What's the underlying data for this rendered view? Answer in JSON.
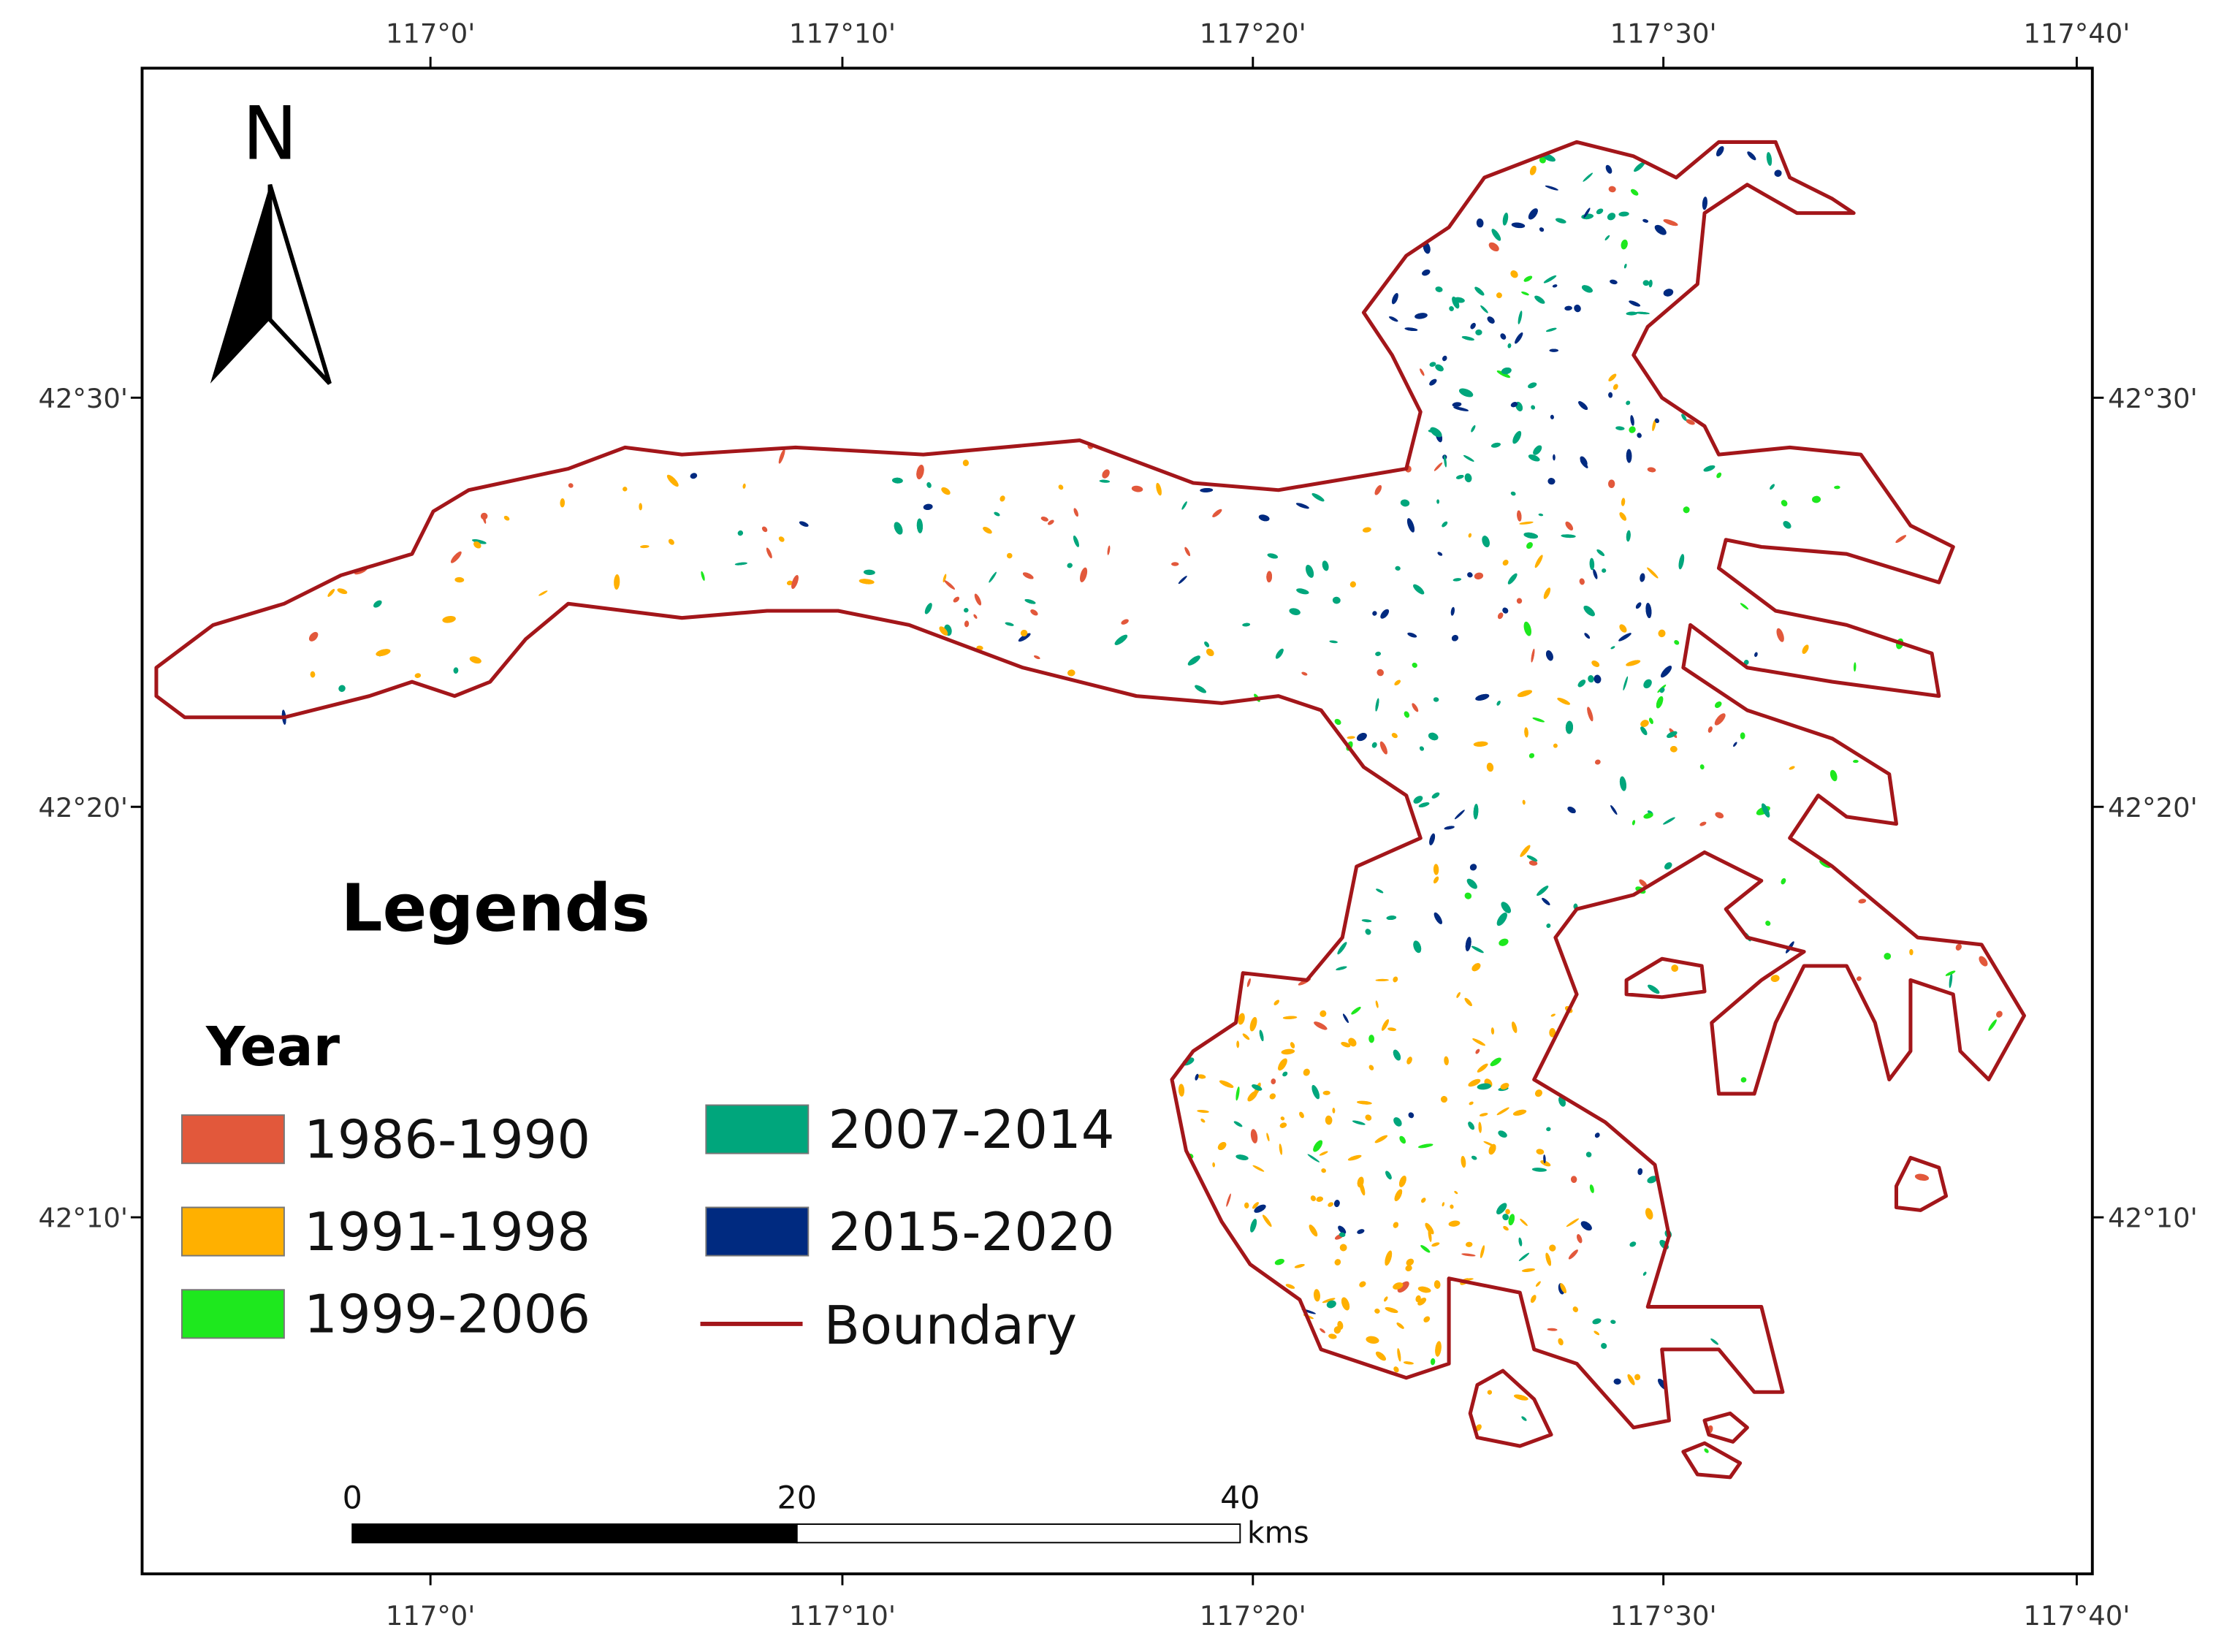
{
  "map": {
    "lon_labels": [
      "117°0'",
      "117°10'",
      "117°20'",
      "117°30'",
      "117°40'"
    ],
    "lat_labels": [
      "42°30'",
      "42°20'",
      "42°10'"
    ],
    "north": "N",
    "legend": {
      "title": "Legends",
      "subtitle": "Year",
      "items": [
        {
          "label": "1986-1990",
          "color": "#e2583b"
        },
        {
          "label": "1991-1998",
          "color": "#ffb000"
        },
        {
          "label": "1999-2006",
          "color": "#1ee81e"
        },
        {
          "label": "2007-2014",
          "color": "#00a67c"
        },
        {
          "label": "2015-2020",
          "color": "#002a80"
        }
      ],
      "boundary": {
        "label": "Boundary",
        "color": "#a3161a"
      }
    },
    "scale_bar": {
      "labels": [
        "0",
        "20",
        "40"
      ],
      "unit": "kms"
    }
  }
}
